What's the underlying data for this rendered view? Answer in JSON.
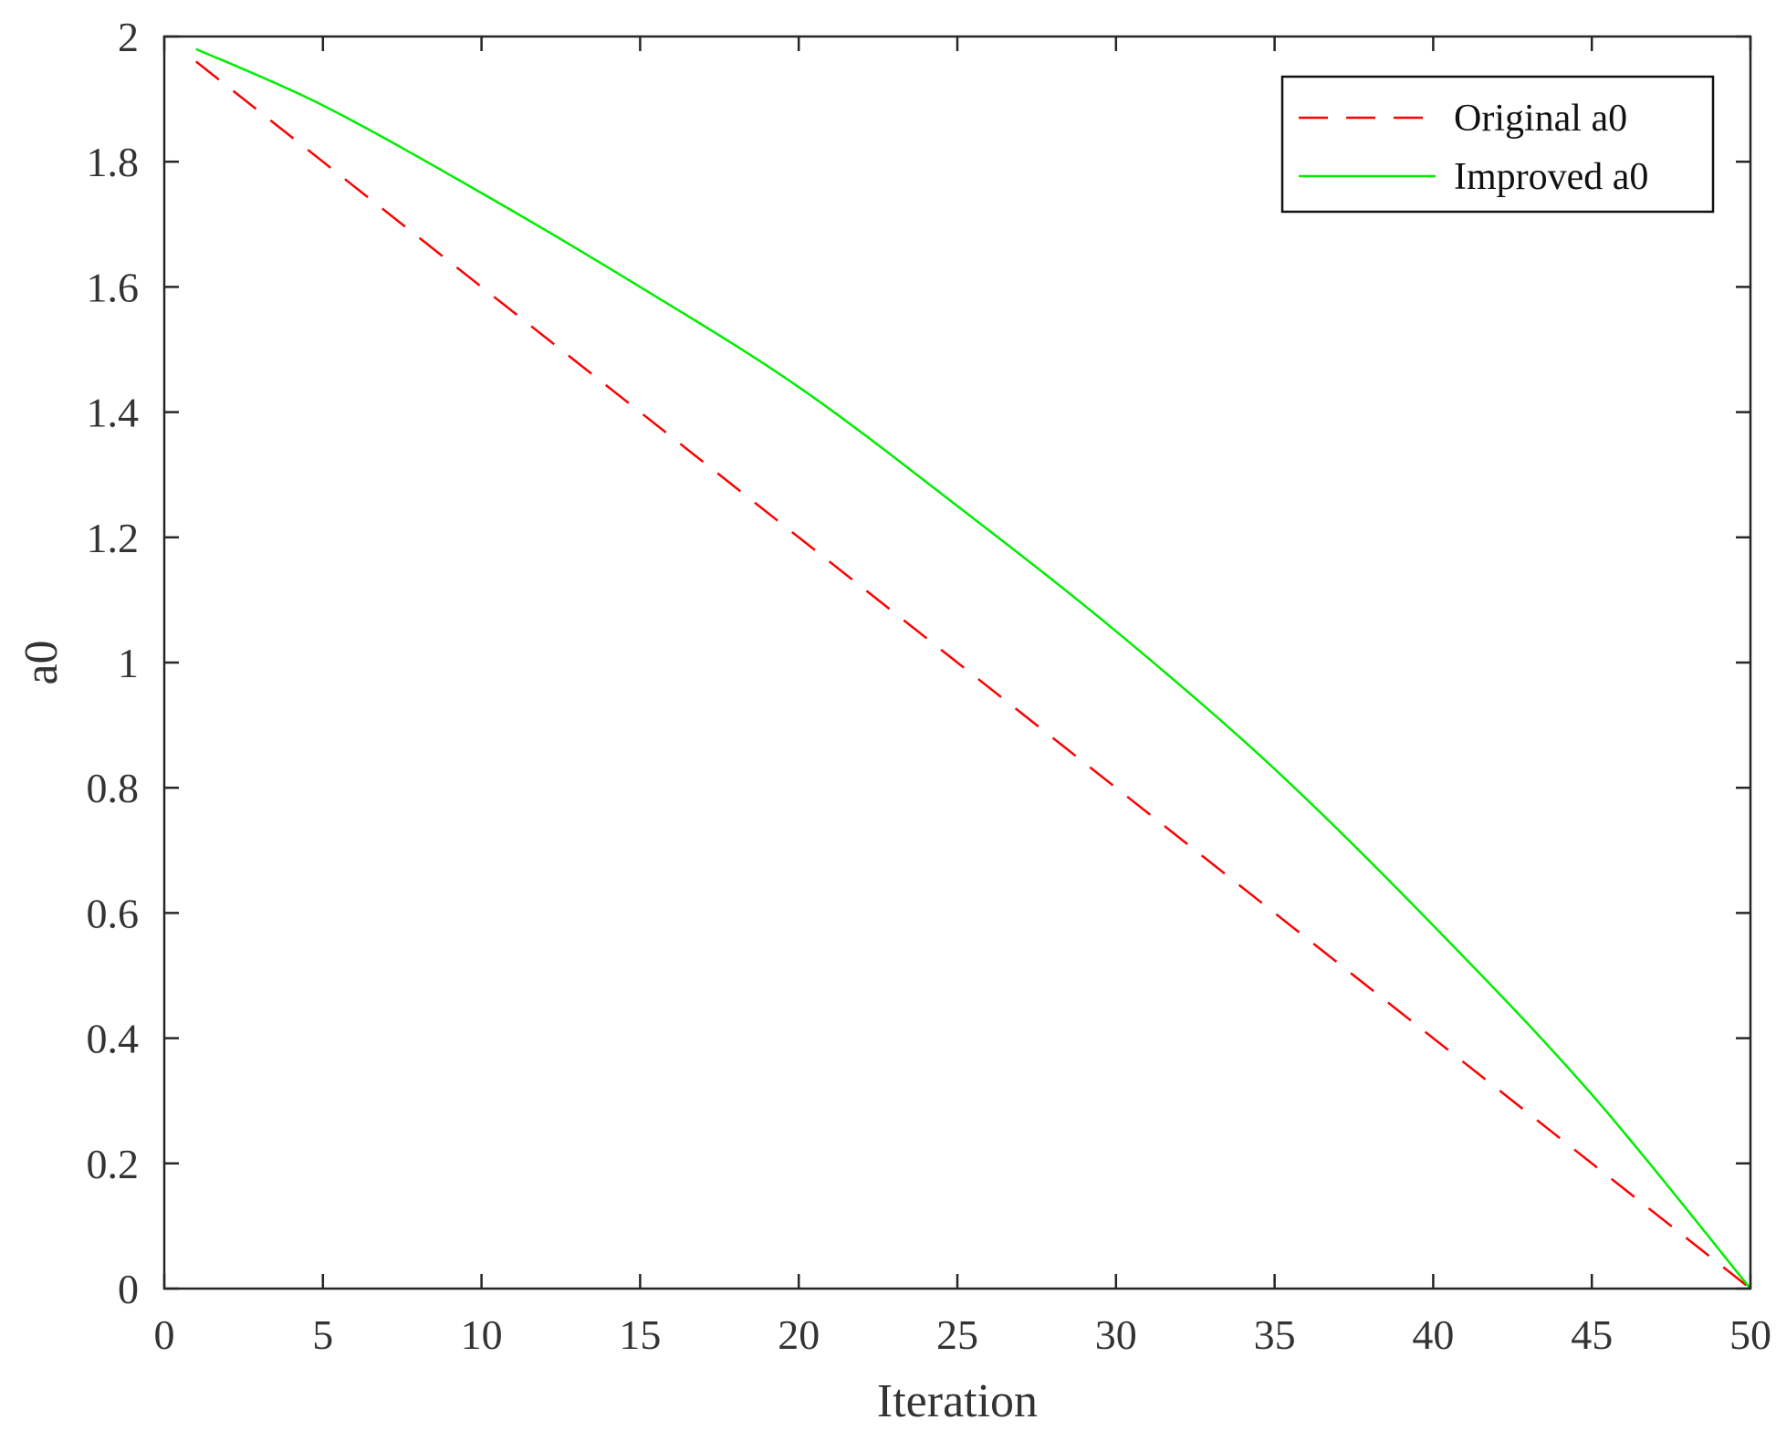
{
  "chart_data": {
    "type": "line",
    "xlabel": "Iteration",
    "ylabel": "a0",
    "xlim": [
      0,
      50
    ],
    "ylim": [
      0,
      2
    ],
    "xticks": [
      0,
      5,
      10,
      15,
      20,
      25,
      30,
      35,
      40,
      45,
      50
    ],
    "yticks": [
      0,
      0.2,
      0.4,
      0.6,
      0.8,
      1,
      1.2,
      1.4,
      1.6,
      1.8,
      2
    ],
    "xtick_labels": [
      "0",
      "5",
      "10",
      "15",
      "20",
      "25",
      "30",
      "35",
      "40",
      "45",
      "50"
    ],
    "ytick_labels": [
      "0",
      "0.2",
      "0.4",
      "0.6",
      "0.8",
      "1",
      "1.2",
      "1.4",
      "1.6",
      "1.8",
      "2"
    ],
    "grid": false,
    "box": true,
    "legend": {
      "location": "top-right",
      "entries": [
        "Original a0",
        "Improved a0"
      ]
    },
    "series": [
      {
        "name": "Original a0",
        "color": "#ff0000",
        "style": "dashed",
        "x": [
          1,
          5,
          10,
          15,
          20,
          25,
          30,
          35,
          40,
          45,
          50
        ],
        "y": [
          1.96,
          1.8,
          1.6,
          1.4,
          1.2,
          1.0,
          0.8,
          0.6,
          0.4,
          0.2,
          0.0
        ]
      },
      {
        "name": "Improved a0",
        "color": "#00ee00",
        "style": "solid",
        "x": [
          1,
          5,
          10,
          15,
          20,
          25,
          30,
          35,
          40,
          45,
          50
        ],
        "y": [
          1.98,
          1.89,
          1.75,
          1.6,
          1.44,
          1.25,
          1.05,
          0.83,
          0.58,
          0.31,
          0.0
        ]
      }
    ]
  }
}
